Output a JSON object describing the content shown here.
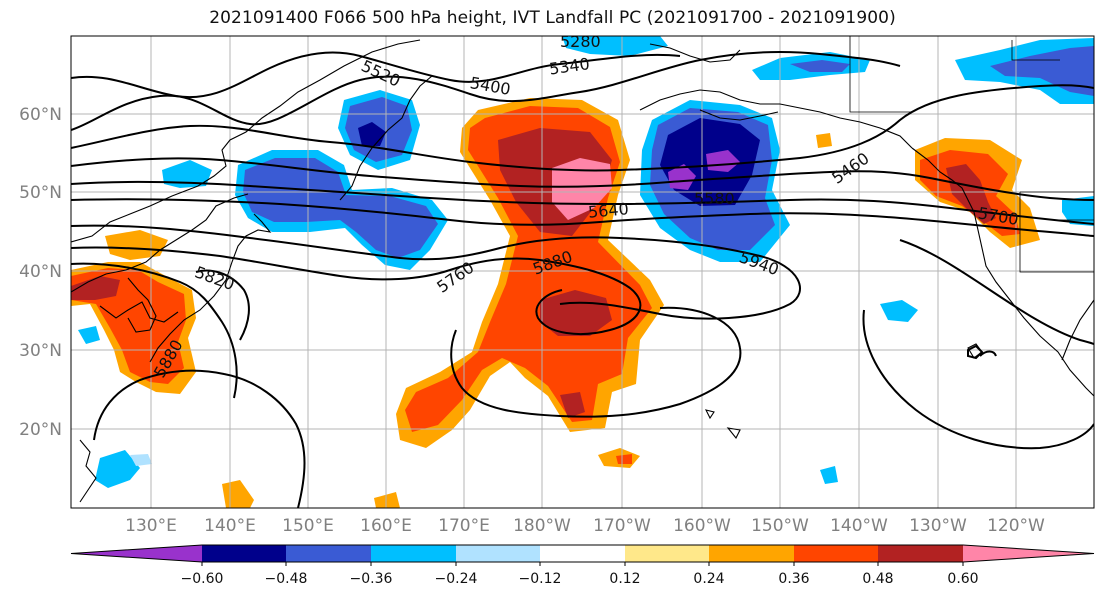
{
  "title": "2021091400 F066 500 hPa height, IVT Landfall PC (2021091700 - 2021091900)",
  "lat_labels": [
    "60°N",
    "50°N",
    "40°N",
    "30°N",
    "20°N"
  ],
  "lon_labels": [
    "130°E",
    "140°E",
    "150°E",
    "160°E",
    "170°E",
    "180°W",
    "170°W",
    "160°W",
    "150°W",
    "140°W",
    "130°W",
    "120°W"
  ],
  "contour_labels": [
    "5280",
    "5340",
    "5520",
    "5400",
    "5460",
    "5580",
    "5640",
    "5700",
    "5760",
    "5880",
    "5940",
    "5820",
    "5880"
  ],
  "colorbar": {
    "tick_labels": [
      "−0.60",
      "−0.48",
      "−0.36",
      "−0.24",
      "−0.12",
      "0.12",
      "0.24",
      "0.36",
      "0.48",
      "0.60"
    ],
    "colors": [
      "#9932cc",
      "#00008b",
      "#3a5bd4",
      "#00bfff",
      "#b0e2ff",
      "#ffffff",
      "#ffe88a",
      "#ffa500",
      "#ff4500",
      "#b22222",
      "#ff85a8"
    ]
  }
}
